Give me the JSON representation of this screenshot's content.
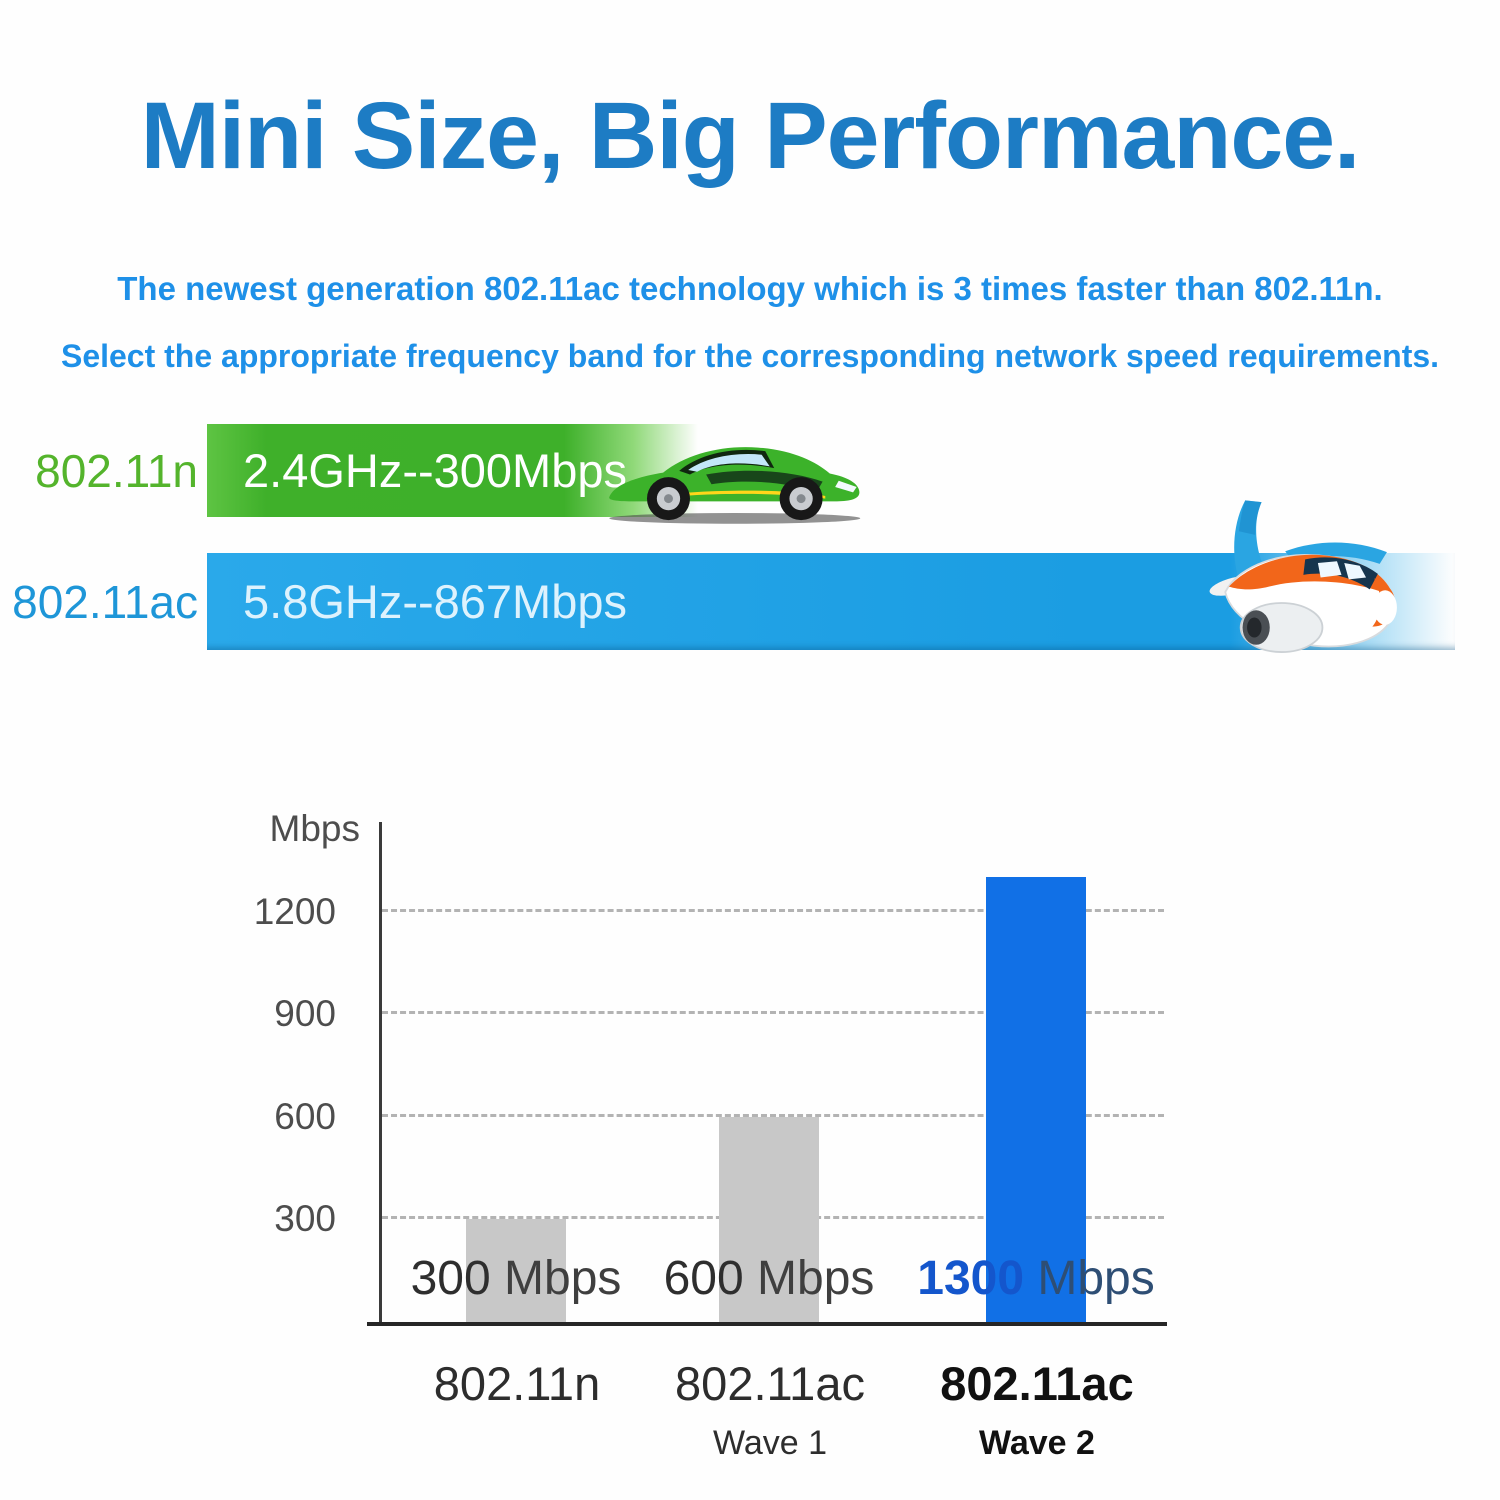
{
  "title": {
    "text": "Mini Size, Big Performance.",
    "color": "#1d7cc4"
  },
  "intro": {
    "line1": "The newest generation 802.11ac technology which is 3 times faster than 802.11n.",
    "line2": "Select the appropriate frequency band for the corresponding network speed requirements.",
    "color": "#1e90e8"
  },
  "bands": [
    {
      "standard": "802.11n",
      "bar_text": "2.4GHz--300Mbps",
      "vehicle": "sports-car",
      "label_color": "#54b42c",
      "bar_color": "#3fb02a"
    },
    {
      "standard": "802.11ac",
      "bar_text": "5.8GHz--867Mbps",
      "vehicle": "airplane",
      "label_color": "#1e96d8",
      "bar_color": "#1b9de2"
    }
  ],
  "chart_data": {
    "type": "bar",
    "ylabel": "Mbps",
    "ytick_values": [
      1200,
      900,
      600,
      300
    ],
    "ylim": [
      0,
      1450
    ],
    "grid": "dashed-horizontal",
    "categories": [
      "802.11n",
      "802.11ac Wave 1",
      "802.11ac Wave 2"
    ],
    "values": [
      300,
      600,
      1300
    ],
    "bars": [
      {
        "value": 300,
        "value_label": "300",
        "unit_label": "Mbps",
        "x_label": "802.11n",
        "x_sublabel": "",
        "color": "#c8c8c8",
        "emphasis": false
      },
      {
        "value": 600,
        "value_label": "600",
        "unit_label": "Mbps",
        "x_label": "802.11ac",
        "x_sublabel": "Wave 1",
        "color": "#c8c8c8",
        "emphasis": false
      },
      {
        "value": 1300,
        "value_label": "1300",
        "unit_label": "Mbps",
        "x_label": "802.11ac",
        "x_sublabel": "Wave 2",
        "color": "#1170e6",
        "emphasis": true
      }
    ]
  }
}
